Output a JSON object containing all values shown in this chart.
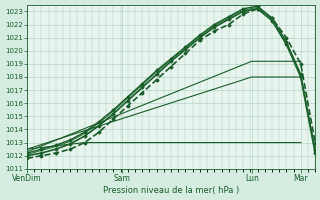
{
  "title": "",
  "xlabel": "Pression niveau de la mer( hPa )",
  "bg_color": "#d4ede0",
  "plot_bg_color": "#e8f5ee",
  "grid_color": "#a8cdb8",
  "dark_green": "#1a5c2a",
  "mid_green": "#2e7d42",
  "ylim": [
    1011,
    1023.5
  ],
  "ytick_min": 1011,
  "ytick_max": 1023,
  "xtick_labels": [
    "VenDim",
    "Sam",
    "Lun",
    "Mar"
  ],
  "xtick_positions": [
    0.0,
    0.33,
    0.78,
    0.95
  ],
  "xlim": [
    0.0,
    1.0
  ],
  "series": [
    {
      "x": [
        0.0,
        0.05,
        0.1,
        0.15,
        0.2,
        0.25,
        0.3,
        0.35,
        0.4,
        0.45,
        0.5,
        0.55,
        0.6,
        0.65,
        0.7,
        0.75,
        0.8,
        0.85,
        0.9,
        0.95,
        1.0
      ],
      "y": [
        1011.8,
        1012.0,
        1012.2,
        1012.5,
        1013.0,
        1013.8,
        1014.8,
        1015.8,
        1016.8,
        1017.8,
        1018.8,
        1019.8,
        1020.8,
        1021.5,
        1022.0,
        1022.8,
        1023.2,
        1022.5,
        1021.0,
        1019.0,
        1013.0
      ],
      "style": "dashed",
      "lw": 1.2,
      "color": "#1a5c2a",
      "marker": "D",
      "ms": 1.5
    },
    {
      "x": [
        0.0,
        0.05,
        0.1,
        0.15,
        0.2,
        0.25,
        0.3,
        0.35,
        0.4,
        0.45,
        0.5,
        0.55,
        0.6,
        0.65,
        0.7,
        0.75,
        0.8,
        0.85,
        0.9,
        0.95,
        1.0
      ],
      "y": [
        1012.0,
        1012.2,
        1012.5,
        1012.9,
        1013.5,
        1014.3,
        1015.2,
        1016.2,
        1017.2,
        1018.2,
        1019.2,
        1020.1,
        1021.0,
        1021.8,
        1022.4,
        1023.0,
        1023.2,
        1022.3,
        1020.5,
        1018.0,
        1012.2
      ],
      "style": "solid",
      "lw": 1.2,
      "color": "#1a5c2a",
      "marker": "D",
      "ms": 1.5
    },
    {
      "x": [
        0.0,
        0.05,
        0.1,
        0.15,
        0.2,
        0.25,
        0.3,
        0.35,
        0.4,
        0.45,
        0.5,
        0.55,
        0.6,
        0.65,
        0.7,
        0.75,
        0.8,
        0.85,
        0.9,
        0.95,
        1.0
      ],
      "y": [
        1012.1,
        1012.4,
        1012.7,
        1013.1,
        1013.7,
        1014.5,
        1015.4,
        1016.4,
        1017.4,
        1018.4,
        1019.3,
        1020.2,
        1021.1,
        1021.9,
        1022.5,
        1023.1,
        1023.3,
        1022.4,
        1020.6,
        1018.1,
        1012.3
      ],
      "style": "solid",
      "lw": 0.8,
      "color": "#2e7d42",
      "marker": null,
      "ms": 0
    },
    {
      "x": [
        0.0,
        0.05,
        0.1,
        0.15,
        0.2,
        0.25,
        0.3,
        0.35,
        0.4,
        0.45,
        0.5,
        0.55,
        0.6,
        0.65,
        0.7,
        0.75,
        0.8,
        0.85,
        0.9,
        0.95,
        1.0
      ],
      "y": [
        1012.2,
        1012.5,
        1012.8,
        1013.2,
        1013.8,
        1014.6,
        1015.5,
        1016.5,
        1017.5,
        1018.5,
        1019.4,
        1020.3,
        1021.2,
        1022.0,
        1022.6,
        1023.2,
        1023.4,
        1022.5,
        1020.7,
        1018.2,
        1012.4
      ],
      "style": "solid",
      "lw": 1.0,
      "color": "#1a5c2a",
      "marker": "D",
      "ms": 1.5
    },
    {
      "x": [
        0.0,
        0.78,
        0.95
      ],
      "y": [
        1012.3,
        1019.2,
        1019.2
      ],
      "style": "solid",
      "lw": 0.8,
      "color": "#1a5c2a",
      "marker": null,
      "ms": 0
    },
    {
      "x": [
        0.0,
        0.78,
        0.95
      ],
      "y": [
        1012.5,
        1018.0,
        1018.0
      ],
      "style": "solid",
      "lw": 0.8,
      "color": "#1a5c2a",
      "marker": null,
      "ms": 0
    },
    {
      "x": [
        0.0,
        0.2,
        0.95
      ],
      "y": [
        1012.5,
        1013.0,
        1013.0
      ],
      "style": "solid",
      "lw": 0.8,
      "color": "#1a5c2a",
      "marker": null,
      "ms": 0
    }
  ]
}
